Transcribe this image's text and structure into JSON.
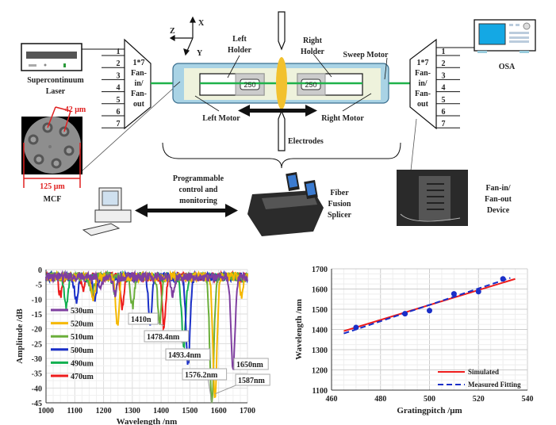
{
  "diagram": {
    "laser": [
      "Supercontinuum",
      "Laser"
    ],
    "mcf": {
      "core_pitch": "42 μm",
      "diameter": "125 μm",
      "label": "MCF"
    },
    "fan_left": {
      "lines": [
        "1*7",
        "Fan-",
        "in/",
        "Fan-",
        "out"
      ],
      "ports": [
        "1",
        "2",
        "3",
        "4",
        "5",
        "6",
        "7"
      ]
    },
    "fan_right": {
      "lines": [
        "1*7",
        "Fan-",
        "in/",
        "Fan-",
        "out"
      ],
      "ports": [
        "1",
        "2",
        "3",
        "4",
        "5",
        "6",
        "7"
      ]
    },
    "axes": {
      "x": "X",
      "y": "Y",
      "z": "Z"
    },
    "left_holder": [
      "Left",
      "Holder"
    ],
    "right_holder": [
      "Right",
      "Holder"
    ],
    "holder_value": "250",
    "sweep_motor": "Sweep Motor",
    "left_motor": "Left Motor",
    "right_motor": "Right Motor",
    "electrodes": "Electrodes",
    "osa": "OSA",
    "control": [
      "Programmable",
      "control and",
      "monitoring"
    ],
    "splicer": [
      "Fiber",
      "Fusion",
      "Splicer"
    ],
    "fan_device": [
      "Fan-in/",
      "Fan-out",
      "Device"
    ],
    "colors": {
      "stage": "#a9d3e5",
      "stage_inner": "#eef2dc",
      "fiber": "#1fb24a",
      "arc": "#f2c12e",
      "mcf_marks": "#e02020"
    }
  },
  "chart_data": [
    {
      "type": "line",
      "xlabel": "Wavelength /nm",
      "ylabel": "Amplitude /dB",
      "xlim": [
        1000,
        1700
      ],
      "ylim": [
        -45,
        0
      ],
      "xticks": [
        "1000",
        "1100",
        "1200",
        "1300",
        "1400",
        "1500",
        "1600",
        "1700"
      ],
      "yticks": [
        "0",
        "-5",
        "-10",
        "-15",
        "-20",
        "-25",
        "-30",
        "-35",
        "-40",
        "-45"
      ],
      "grid": true,
      "legend": "left",
      "series": [
        {
          "name": "530um",
          "color": "#7f3fa0",
          "dips": [
            [
              1650,
              -33
            ],
            [
              1440,
              -8
            ],
            [
              1190,
              -5
            ],
            [
              1240,
              -8
            ]
          ]
        },
        {
          "name": "520um",
          "color": "#f5b800",
          "dips": [
            [
              1587,
              -42
            ],
            [
              1248,
              -18
            ],
            [
              1165,
              -10
            ],
            [
              1680,
              -8
            ]
          ]
        },
        {
          "name": "510um",
          "color": "#6aae3a",
          "dips": [
            [
              1576.2,
              -45
            ],
            [
              1395,
              -18
            ],
            [
              1300,
              -12
            ],
            [
              1160,
              -9
            ]
          ]
        },
        {
          "name": "500um",
          "color": "#1a2fc8",
          "dips": [
            [
              1493.4,
              -31
            ],
            [
              1362,
              -17
            ],
            [
              1105,
              -10
            ],
            [
              1170,
              -10
            ]
          ]
        },
        {
          "name": "490um",
          "color": "#12b050",
          "dips": [
            [
              1478.4,
              -25
            ],
            [
              1070,
              -12
            ],
            [
              1240,
              -8
            ]
          ]
        },
        {
          "name": "470um",
          "color": "#ee1c1c",
          "dips": [
            [
              1410,
              -19
            ],
            [
              1265,
              -13
            ],
            [
              1050,
              -8
            ],
            [
              1130,
              -6
            ]
          ]
        }
      ],
      "annotations": [
        {
          "text": "1410n",
          "x": 1410,
          "y": -19
        },
        {
          "text": "1478.4nm",
          "x": 1478.4,
          "y": -25
        },
        {
          "text": "1493.4nm",
          "x": 1493.4,
          "y": -31
        },
        {
          "text": "1576.2nm",
          "x": 1576.2,
          "y": -45
        },
        {
          "text": "1587nm",
          "x": 1587,
          "y": -42
        },
        {
          "text": "1650nm",
          "x": 1650,
          "y": -33
        }
      ]
    },
    {
      "type": "scatter",
      "xlabel": "Gratingpitch /μm",
      "ylabel": "Wavelength /nm",
      "xlim": [
        460,
        540
      ],
      "ylim": [
        1100,
        1700
      ],
      "xticks": [
        "460",
        "480",
        "500",
        "520",
        "540"
      ],
      "yticks": [
        "1100",
        "1200",
        "1300",
        "1400",
        "1500",
        "1600",
        "1700"
      ],
      "grid": true,
      "legend": "bottom-right",
      "points": {
        "color": "#1a2fc8",
        "x": [
          470,
          490,
          500,
          510,
          520,
          530
        ],
        "y": [
          1410,
          1478,
          1493,
          1576,
          1587,
          1650
        ]
      },
      "series": [
        {
          "name": "Simulated",
          "color": "#ee1c1c",
          "style": "solid",
          "x": [
            465,
            535
          ],
          "y": [
            1392,
            1650
          ]
        },
        {
          "name": "Measured Fitting",
          "color": "#1a2fc8",
          "style": "dashed",
          "x": [
            465,
            533
          ],
          "y": [
            1380,
            1655
          ]
        }
      ]
    }
  ]
}
